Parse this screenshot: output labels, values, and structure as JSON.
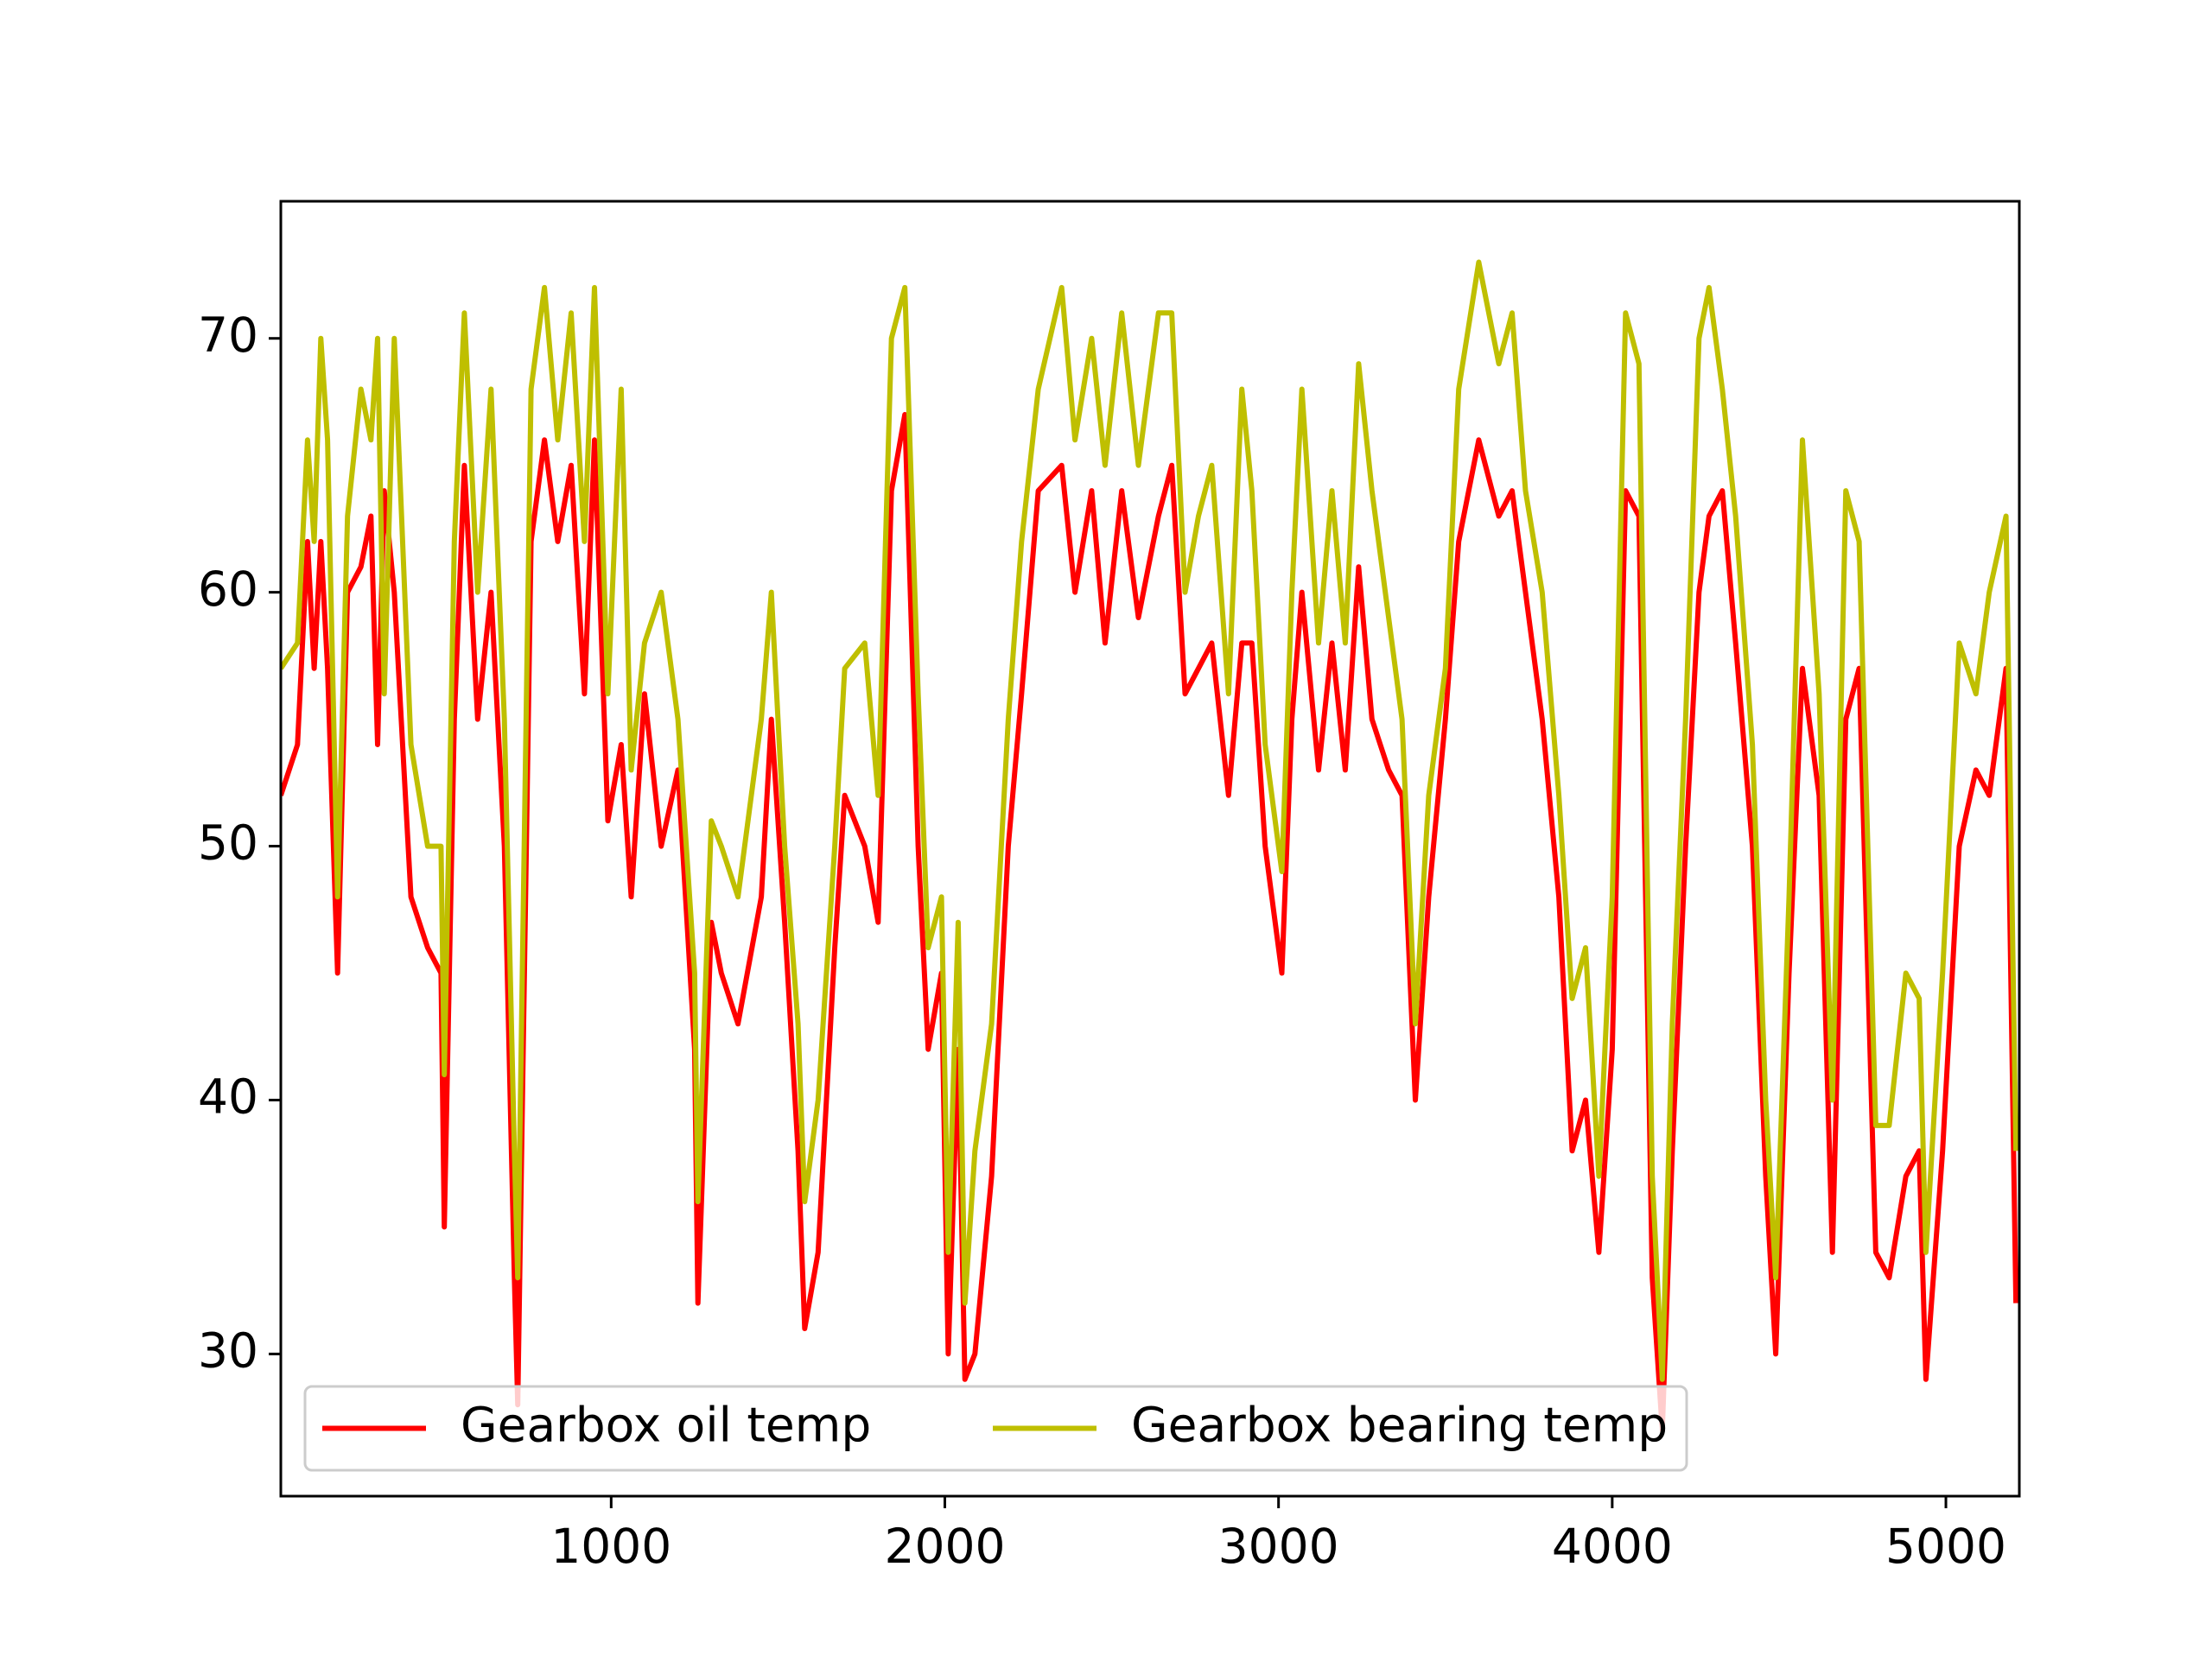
{
  "chart_data": {
    "type": "line",
    "x": [
      10,
      60,
      90,
      110,
      130,
      150,
      180,
      210,
      250,
      280,
      300,
      320,
      350,
      400,
      450,
      490,
      500,
      530,
      560,
      600,
      640,
      680,
      710,
      720,
      760,
      800,
      840,
      880,
      920,
      950,
      990,
      1030,
      1060,
      1100,
      1150,
      1200,
      1250,
      1260,
      1300,
      1330,
      1380,
      1450,
      1480,
      1520,
      1560,
      1580,
      1620,
      1670,
      1700,
      1760,
      1800,
      1840,
      1880,
      1920,
      1950,
      1990,
      2010,
      2040,
      2060,
      2090,
      2140,
      2190,
      2230,
      2280,
      2350,
      2390,
      2440,
      2480,
      2530,
      2580,
      2640,
      2680,
      2720,
      2760,
      2800,
      2850,
      2890,
      2920,
      2960,
      3010,
      3040,
      3070,
      3120,
      3160,
      3200,
      3240,
      3280,
      3330,
      3370,
      3410,
      3450,
      3500,
      3540,
      3600,
      3660,
      3700,
      3740,
      3790,
      3840,
      3880,
      3920,
      3960,
      4000,
      4040,
      4080,
      4120,
      4150,
      4180,
      4220,
      4260,
      4290,
      4330,
      4370,
      4420,
      4460,
      4490,
      4530,
      4570,
      4620,
      4660,
      4700,
      4740,
      4790,
      4830,
      4880,
      4920,
      4940,
      4990,
      5040,
      5090,
      5130,
      5180,
      5210
    ],
    "series": [
      {
        "name": "Gearbox oil temp",
        "color": "#ff0000",
        "values": [
          52,
          54,
          62,
          57,
          62,
          57,
          45,
          60,
          61,
          63,
          54,
          64,
          60,
          48,
          46,
          45,
          35,
          55,
          65,
          55,
          60,
          50,
          33,
          28,
          62,
          66,
          62,
          65,
          56,
          66,
          51,
          54,
          48,
          56,
          50,
          53,
          42,
          32,
          47,
          45,
          43,
          48,
          55,
          47,
          38,
          31,
          34,
          46,
          52,
          50,
          47,
          64,
          67,
          50,
          42,
          45,
          30,
          42,
          29,
          30,
          37,
          50,
          56,
          64,
          65,
          60,
          64,
          58,
          64,
          59,
          63,
          65,
          56,
          57,
          58,
          52,
          58,
          58,
          50,
          45,
          55,
          60,
          53,
          58,
          53,
          61,
          55,
          53,
          52,
          40,
          48,
          55,
          62,
          66,
          63,
          64,
          60,
          55,
          48,
          38,
          40,
          34,
          42,
          64,
          63,
          33,
          27,
          38,
          50,
          60,
          63,
          64,
          58,
          50,
          37,
          30,
          45,
          57,
          52,
          34,
          55,
          57,
          34,
          33,
          37,
          38,
          29,
          38,
          50,
          53,
          52,
          57,
          32
        ]
      },
      {
        "name": "Gearbox bearing temp",
        "color": "#bfbf00",
        "values": [
          57,
          58,
          66,
          62,
          70,
          66,
          48,
          63,
          68,
          66,
          70,
          56,
          70,
          54,
          50,
          50,
          41,
          62,
          71,
          60,
          68,
          55,
          38,
          33,
          68,
          72,
          66,
          71,
          62,
          72,
          56,
          68,
          53,
          58,
          60,
          55,
          45,
          36,
          51,
          50,
          48,
          55,
          60,
          50,
          43,
          36,
          40,
          50,
          57,
          58,
          52,
          70,
          72,
          56,
          46,
          48,
          34,
          47,
          32,
          38,
          43,
          55,
          62,
          68,
          72,
          66,
          70,
          65,
          71,
          65,
          71,
          71,
          60,
          63,
          65,
          56,
          68,
          64,
          54,
          49,
          60,
          68,
          58,
          64,
          58,
          69,
          64,
          59,
          55,
          43,
          52,
          57,
          68,
          73,
          69,
          71,
          64,
          60,
          52,
          44,
          46,
          37,
          48,
          71,
          69,
          37,
          29,
          43,
          55,
          70,
          72,
          68,
          63,
          54,
          40,
          33,
          48,
          66,
          56,
          40,
          64,
          62,
          39,
          39,
          45,
          44,
          34,
          45,
          58,
          56,
          60,
          63,
          38
        ]
      }
    ],
    "xlim": [
      10,
      5220
    ],
    "ylim": [
      24.4,
      75.4
    ],
    "xticks": [
      1000,
      2000,
      3000,
      4000,
      5000
    ],
    "yticks": [
      30,
      40,
      50,
      60,
      70
    ],
    "legend": "lower left"
  }
}
